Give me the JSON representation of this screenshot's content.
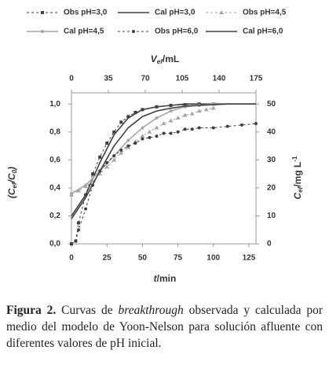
{
  "chart_data": {
    "type": "line",
    "xlabel": [
      "t",
      "/min"
    ],
    "x2label": [
      "V",
      "ef",
      "/mL"
    ],
    "ylabel": [
      "(C",
      "ef",
      "/C",
      "0",
      ")"
    ],
    "y2label": [
      "C",
      "ef",
      "/mg L",
      "-1"
    ],
    "xlim": [
      0,
      130
    ],
    "xticks": [
      0,
      25,
      50,
      75,
      100,
      125
    ],
    "x2lim": [
      0,
      175
    ],
    "x2ticks": [
      0,
      35,
      70,
      105,
      140,
      175
    ],
    "ylim": [
      0,
      1.08
    ],
    "yticks": [
      {
        "value": 0,
        "label": "0,0"
      },
      {
        "value": 0.2,
        "label": "0,2"
      },
      {
        "value": 0.4,
        "label": "0,4"
      },
      {
        "value": 0.6,
        "label": "0,6"
      },
      {
        "value": 0.8,
        "label": "0,8"
      },
      {
        "value": 1.0,
        "label": "1,0"
      }
    ],
    "y2lim": [
      0,
      54
    ],
    "y2ticks": [
      0,
      10,
      20,
      30,
      40,
      50
    ],
    "series": [
      {
        "name": "Obs pH=3,0",
        "color": "#404040",
        "dashed": true,
        "marker": "square",
        "x": [
          0,
          3,
          5,
          10,
          15,
          20,
          25,
          30,
          35,
          40,
          45,
          50,
          60,
          70,
          80,
          90,
          100
        ],
        "values": [
          0,
          0.02,
          0.15,
          0.35,
          0.5,
          0.62,
          0.72,
          0.8,
          0.87,
          0.91,
          0.94,
          0.96,
          0.98,
          0.99,
          0.995,
          1.0,
          1.0
        ]
      },
      {
        "name": "Cal pH=3,0",
        "color": "#404040",
        "dashed": false,
        "marker": "none",
        "x": [
          0,
          10,
          20,
          30,
          40,
          50,
          60,
          70,
          80,
          90,
          100,
          110,
          120,
          130
        ],
        "values": [
          0.2,
          0.35,
          0.58,
          0.78,
          0.9,
          0.96,
          0.98,
          0.99,
          1.0,
          1.0,
          1.0,
          1.0,
          1.0,
          1.0
        ]
      },
      {
        "name": "Obs pH=4,5",
        "color": "#a6a6a6",
        "dashed": true,
        "marker": "triangle",
        "x": [
          0,
          5,
          10,
          15,
          20,
          25,
          30,
          35,
          40,
          45,
          50,
          55,
          60,
          65,
          70,
          75,
          80,
          85,
          90,
          95,
          100
        ],
        "values": [
          0.35,
          0.38,
          0.41,
          0.45,
          0.5,
          0.55,
          0.6,
          0.65,
          0.69,
          0.73,
          0.77,
          0.8,
          0.83,
          0.86,
          0.88,
          0.9,
          0.92,
          0.93,
          0.95,
          0.96,
          0.97
        ]
      },
      {
        "name": "Cal pH=4,5",
        "color": "#a6a6a6",
        "dashed": false,
        "marker": "circle",
        "x": [
          0,
          10,
          20,
          30,
          40,
          50,
          60,
          70,
          80,
          90,
          100
        ],
        "values": [
          0.36,
          0.42,
          0.52,
          0.63,
          0.74,
          0.83,
          0.9,
          0.95,
          0.98,
          0.99,
          1.0
        ]
      },
      {
        "name": "Obs pH=6,0",
        "color": "#404040",
        "dashed": true,
        "marker": "circle",
        "x": [
          0,
          3,
          5,
          10,
          15,
          20,
          25,
          30,
          35,
          40,
          45,
          50,
          55,
          60,
          65,
          70,
          75,
          80,
          85,
          90,
          100,
          110,
          120,
          130
        ],
        "values": [
          0,
          0.02,
          0.1,
          0.25,
          0.42,
          0.52,
          0.58,
          0.63,
          0.67,
          0.7,
          0.72,
          0.75,
          0.76,
          0.77,
          0.79,
          0.79,
          0.8,
          0.82,
          0.82,
          0.83,
          0.83,
          0.84,
          0.85,
          0.86
        ]
      },
      {
        "name": "Cal pH=6,0",
        "color": "#404040",
        "dashed": false,
        "marker": "none",
        "x": [
          0,
          10,
          20,
          30,
          40,
          50,
          60,
          70,
          80,
          90,
          100,
          110,
          120,
          130
        ],
        "values": [
          0.18,
          0.33,
          0.52,
          0.7,
          0.83,
          0.91,
          0.95,
          0.97,
          0.985,
          0.99,
          0.995,
          1.0,
          1.0,
          1.0
        ]
      }
    ],
    "caption": {
      "label": "Figura 2.",
      "text1": "Curvas de",
      "italic": "breakthrough",
      "text2": "observada y calculada por medio del modelo de Yoon-Nelson para solución afluente con diferentes valores de pH inicial."
    }
  }
}
